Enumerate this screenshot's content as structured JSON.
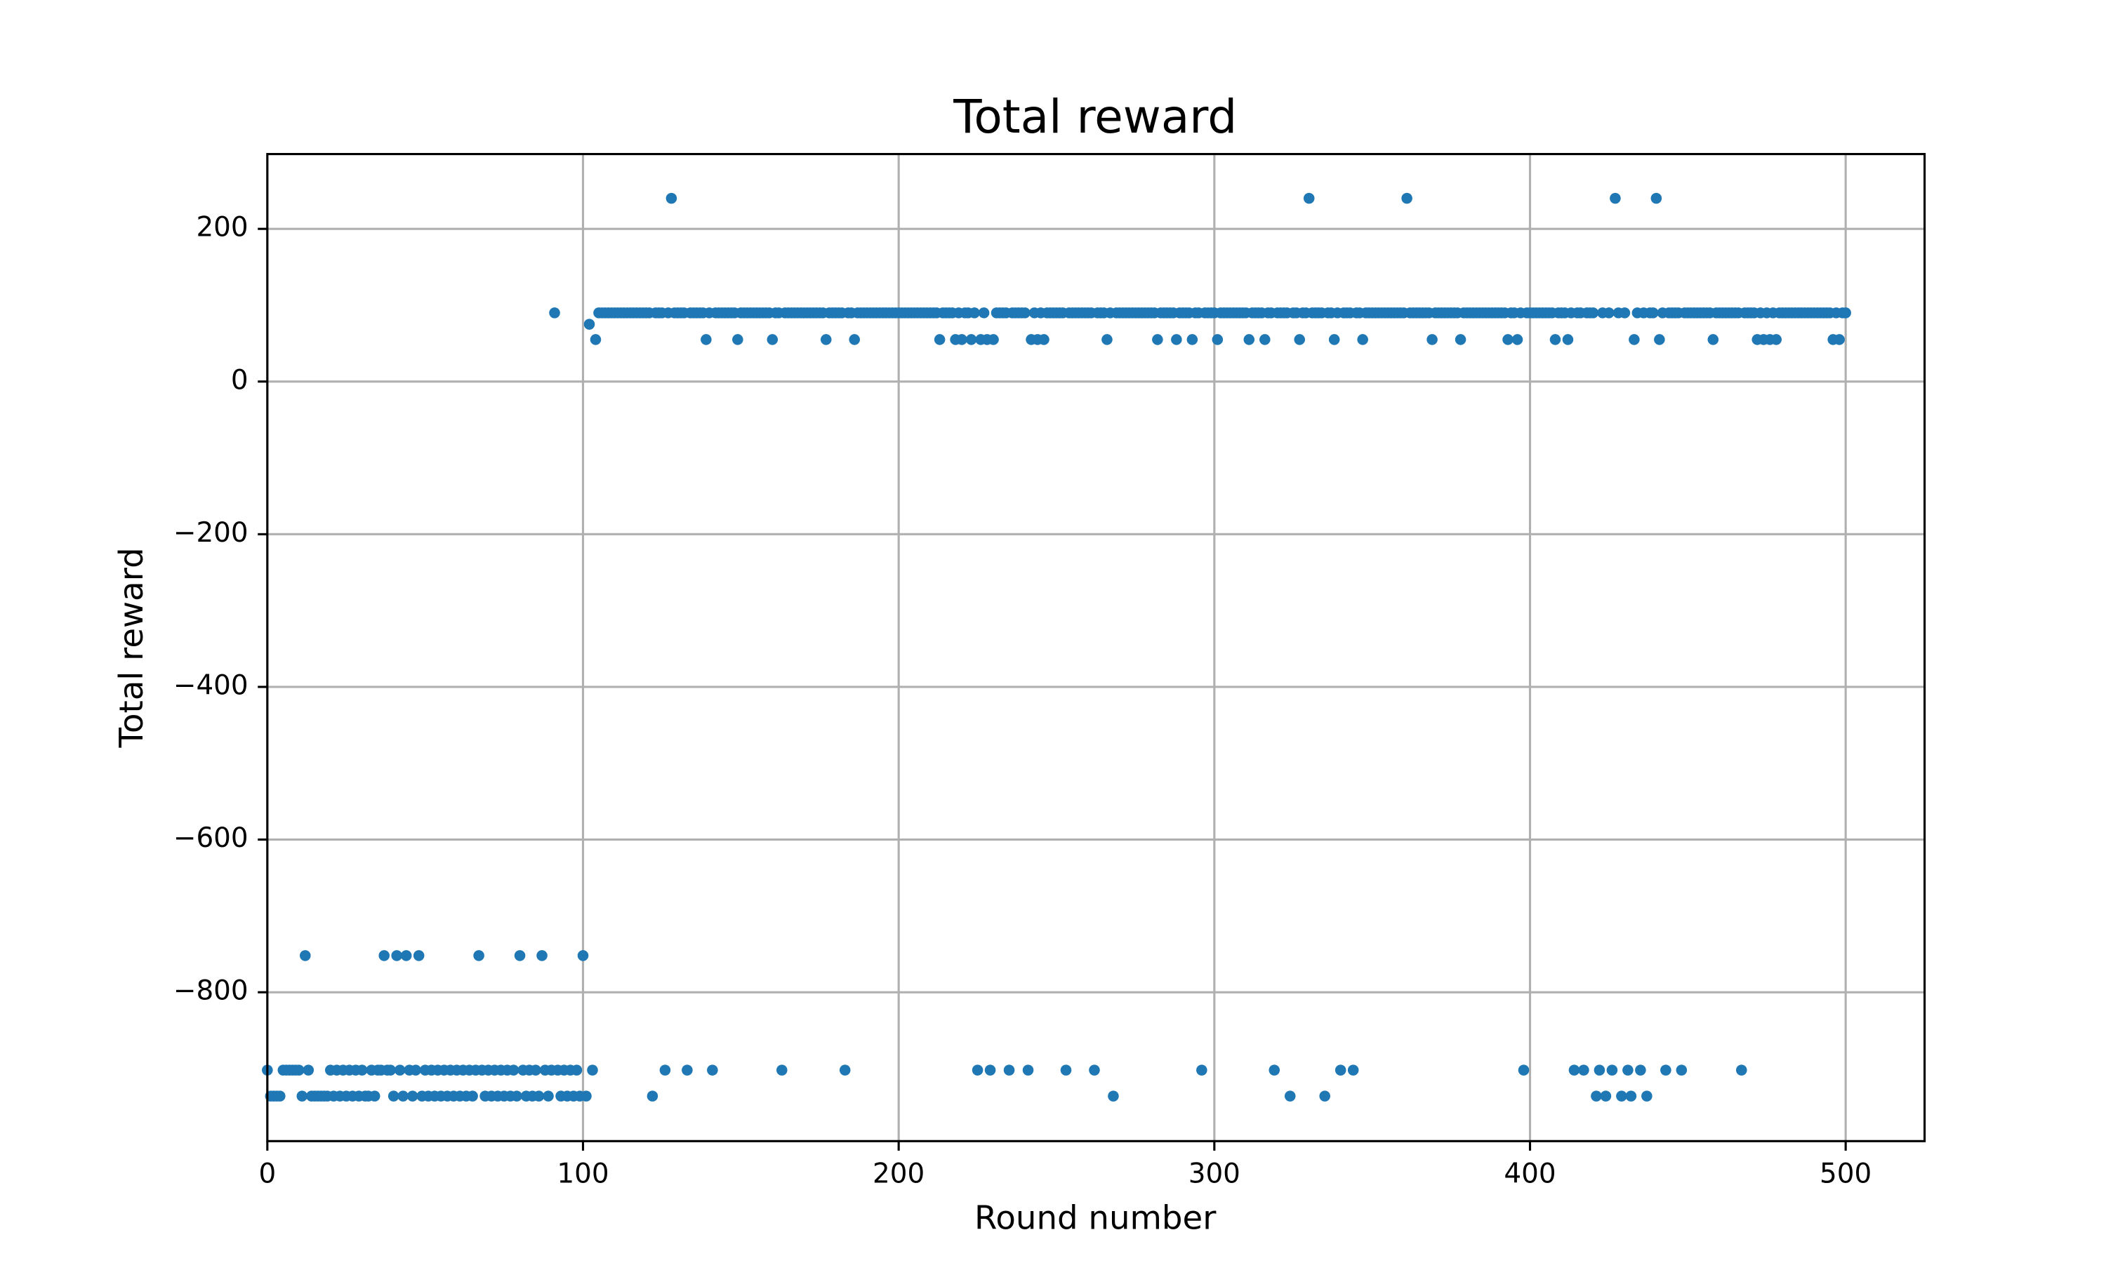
{
  "chart_data": {
    "type": "scatter",
    "title": "Total reward",
    "x_label": "Round number",
    "y_label": "Total reward",
    "color": "#1f77b4",
    "grid": true,
    "xlim": [
      0,
      525
    ],
    "ylim": [
      -995,
      298
    ],
    "xticks": [
      0,
      100,
      200,
      300,
      400,
      500
    ],
    "yticks": [
      {
        "value": -800,
        "label": "−800"
      },
      {
        "value": -600,
        "label": "−600"
      },
      {
        "value": -400,
        "label": "−400"
      },
      {
        "value": -200,
        "label": "−200"
      },
      0,
      200
    ],
    "x": [
      0,
      1,
      2,
      3,
      4,
      5,
      6,
      7,
      8,
      9,
      10,
      11,
      12,
      13,
      14,
      15,
      16,
      17,
      18,
      19,
      20,
      21,
      22,
      23,
      24,
      25,
      26,
      27,
      28,
      29,
      30,
      31,
      32,
      33,
      34,
      35,
      36,
      37,
      38,
      39,
      40,
      41,
      42,
      43,
      44,
      45,
      46,
      47,
      48,
      49,
      50,
      51,
      52,
      53,
      54,
      55,
      56,
      57,
      58,
      59,
      60,
      61,
      62,
      63,
      64,
      65,
      66,
      67,
      68,
      69,
      70,
      71,
      72,
      73,
      74,
      75,
      76,
      77,
      78,
      79,
      80,
      81,
      82,
      83,
      84,
      85,
      86,
      87,
      88,
      89,
      90,
      91,
      92,
      93,
      94,
      95,
      96,
      97,
      98,
      99,
      100,
      101,
      102,
      103,
      104,
      105,
      106,
      107,
      108,
      109,
      110,
      111,
      112,
      113,
      114,
      115,
      116,
      117,
      118,
      119,
      120,
      121,
      122,
      123,
      124,
      125,
      126,
      127,
      128,
      129,
      130,
      131,
      132,
      133,
      134,
      135,
      136,
      137,
      138,
      139,
      140,
      141,
      142,
      143,
      144,
      145,
      146,
      147,
      148,
      149,
      150,
      151,
      152,
      153,
      154,
      155,
      156,
      157,
      158,
      159,
      160,
      161,
      162,
      163,
      164,
      165,
      166,
      167,
      168,
      169,
      170,
      171,
      172,
      173,
      174,
      175,
      176,
      177,
      178,
      179,
      180,
      181,
      182,
      183,
      184,
      185,
      186,
      187,
      188,
      189,
      190,
      191,
      192,
      193,
      194,
      195,
      196,
      197,
      198,
      199,
      200,
      201,
      202,
      203,
      204,
      205,
      206,
      207,
      208,
      209,
      210,
      211,
      212,
      213,
      214,
      215,
      216,
      217,
      218,
      219,
      220,
      221,
      222,
      223,
      224,
      225,
      226,
      227,
      228,
      229,
      230,
      231,
      232,
      233,
      234,
      235,
      236,
      237,
      238,
      239,
      240,
      241,
      242,
      243,
      244,
      245,
      246,
      247,
      248,
      249,
      250,
      251,
      252,
      253,
      254,
      255,
      256,
      257,
      258,
      259,
      260,
      261,
      262,
      263,
      264,
      265,
      266,
      267,
      268,
      269,
      270,
      271,
      272,
      273,
      274,
      275,
      276,
      277,
      278,
      279,
      280,
      281,
      282,
      283,
      284,
      285,
      286,
      287,
      288,
      289,
      290,
      291,
      292,
      293,
      294,
      295,
      296,
      297,
      298,
      299,
      300,
      301,
      302,
      303,
      304,
      305,
      306,
      307,
      308,
      309,
      310,
      311,
      312,
      313,
      314,
      315,
      316,
      317,
      318,
      319,
      320,
      321,
      322,
      323,
      324,
      325,
      326,
      327,
      328,
      329,
      330,
      331,
      332,
      333,
      334,
      335,
      336,
      337,
      338,
      339,
      340,
      341,
      342,
      343,
      344,
      345,
      346,
      347,
      348,
      349,
      350,
      351,
      352,
      353,
      354,
      355,
      356,
      357,
      358,
      359,
      360,
      361,
      362,
      363,
      364,
      365,
      366,
      367,
      368,
      369,
      370,
      371,
      372,
      373,
      374,
      375,
      376,
      377,
      378,
      379,
      380,
      381,
      382,
      383,
      384,
      385,
      386,
      387,
      388,
      389,
      390,
      391,
      392,
      393,
      394,
      395,
      396,
      397,
      398,
      399,
      400,
      401,
      402,
      403,
      404,
      405,
      406,
      407,
      408,
      409,
      410,
      411,
      412,
      413,
      414,
      415,
      416,
      417,
      418,
      419,
      420,
      421,
      422,
      423,
      424,
      425,
      426,
      427,
      428,
      429,
      430,
      431,
      432,
      433,
      434,
      435,
      436,
      437,
      438,
      439,
      440,
      441,
      442,
      443,
      444,
      445,
      446,
      447,
      448,
      449,
      450,
      451,
      452,
      453,
      454,
      455,
      456,
      457,
      458,
      459,
      460,
      461,
      462,
      463,
      464,
      465,
      466,
      467,
      468,
      469,
      470,
      471,
      472,
      473,
      474,
      475,
      476,
      477,
      478,
      479,
      480,
      481,
      482,
      483,
      484,
      485,
      486,
      487,
      488,
      489,
      490,
      491,
      492,
      493,
      494,
      495,
      496,
      497,
      498,
      499,
      500
    ],
    "values": [
      -902,
      -936,
      -936,
      -936,
      -936,
      -902,
      -902,
      -902,
      -902,
      -902,
      -902,
      -936,
      -752,
      -902,
      -936,
      -936,
      -936,
      -936,
      -936,
      -936,
      -902,
      -936,
      -902,
      -936,
      -902,
      -936,
      -902,
      -936,
      -902,
      -936,
      -902,
      -936,
      -936,
      -902,
      -936,
      -902,
      -902,
      -752,
      -902,
      -902,
      -936,
      -752,
      -902,
      -936,
      -752,
      -902,
      -936,
      -902,
      -752,
      -936,
      -902,
      -936,
      -902,
      -936,
      -902,
      -936,
      -902,
      -936,
      -902,
      -936,
      -902,
      -936,
      -902,
      -936,
      -902,
      -936,
      -902,
      -752,
      -902,
      -936,
      -902,
      -936,
      -902,
      -936,
      -902,
      -936,
      -902,
      -936,
      -902,
      -936,
      -752,
      -902,
      -936,
      -902,
      -936,
      -902,
      -936,
      -752,
      -902,
      -936,
      -902,
      90,
      -902,
      -936,
      -902,
      -936,
      -902,
      -936,
      -902,
      -936,
      -752,
      -936,
      75,
      -902,
      55,
      90,
      90,
      90,
      90,
      90,
      90,
      90,
      90,
      90,
      90,
      90,
      90,
      90,
      90,
      90,
      90,
      90,
      -936,
      90,
      90,
      90,
      -902,
      90,
      240,
      90,
      90,
      90,
      90,
      -902,
      90,
      90,
      90,
      90,
      90,
      55,
      90,
      -902,
      90,
      90,
      90,
      90,
      90,
      90,
      90,
      55,
      90,
      90,
      90,
      90,
      90,
      90,
      90,
      90,
      90,
      90,
      55,
      90,
      90,
      -902,
      90,
      90,
      90,
      90,
      90,
      90,
      90,
      90,
      90,
      90,
      90,
      90,
      90,
      55,
      90,
      90,
      90,
      90,
      90,
      -902,
      90,
      90,
      55,
      90,
      90,
      90,
      90,
      90,
      90,
      90,
      90,
      90,
      90,
      90,
      90,
      90,
      90,
      90,
      90,
      90,
      90,
      90,
      90,
      90,
      90,
      90,
      90,
      90,
      90,
      55,
      90,
      90,
      90,
      90,
      55,
      90,
      55,
      90,
      90,
      55,
      90,
      -902,
      55,
      90,
      55,
      -902,
      55,
      90,
      90,
      90,
      90,
      -902,
      90,
      90,
      90,
      90,
      90,
      -902,
      55,
      90,
      55,
      90,
      55,
      90,
      90,
      90,
      90,
      90,
      90,
      -902,
      90,
      90,
      90,
      90,
      90,
      90,
      90,
      90,
      -902,
      90,
      90,
      90,
      55,
      90,
      -936,
      90,
      90,
      90,
      90,
      90,
      90,
      90,
      90,
      90,
      90,
      90,
      90,
      90,
      55,
      90,
      90,
      90,
      90,
      90,
      55,
      90,
      90,
      90,
      90,
      55,
      90,
      90,
      -902,
      90,
      90,
      90,
      90,
      55,
      90,
      90,
      90,
      90,
      90,
      90,
      90,
      90,
      90,
      55,
      90,
      90,
      90,
      90,
      55,
      90,
      90,
      -902,
      90,
      90,
      90,
      90,
      -936,
      90,
      90,
      55,
      90,
      90,
      240,
      90,
      90,
      90,
      90,
      -936,
      90,
      90,
      55,
      90,
      -902,
      90,
      90,
      90,
      -902,
      90,
      90,
      55,
      90,
      90,
      90,
      90,
      90,
      90,
      90,
      90,
      90,
      90,
      90,
      90,
      90,
      240,
      90,
      90,
      90,
      90,
      90,
      90,
      90,
      55,
      90,
      90,
      90,
      90,
      90,
      90,
      90,
      90,
      55,
      90,
      90,
      90,
      90,
      90,
      90,
      90,
      90,
      90,
      90,
      90,
      90,
      90,
      90,
      55,
      90,
      90,
      55,
      90,
      -902,
      90,
      90,
      90,
      90,
      90,
      90,
      90,
      90,
      90,
      55,
      90,
      90,
      90,
      55,
      90,
      -902,
      90,
      90,
      -902,
      90,
      90,
      90,
      -936,
      -902,
      90,
      -936,
      90,
      -902,
      240,
      90,
      -936,
      90,
      -902,
      -936,
      55,
      90,
      -902,
      90,
      -936,
      90,
      90,
      240,
      55,
      90,
      -902,
      90,
      90,
      90,
      90,
      -902,
      90,
      90,
      90,
      90,
      90,
      90,
      90,
      90,
      90,
      55,
      90,
      90,
      90,
      90,
      90,
      90,
      90,
      90,
      -902,
      90,
      90,
      90,
      90,
      55,
      90,
      55,
      90,
      55,
      90,
      55,
      90,
      90,
      90,
      90,
      90,
      90,
      90,
      90,
      90,
      90,
      90,
      90,
      90,
      90,
      90,
      90,
      90,
      55,
      90,
      55,
      90,
      90
    ]
  }
}
